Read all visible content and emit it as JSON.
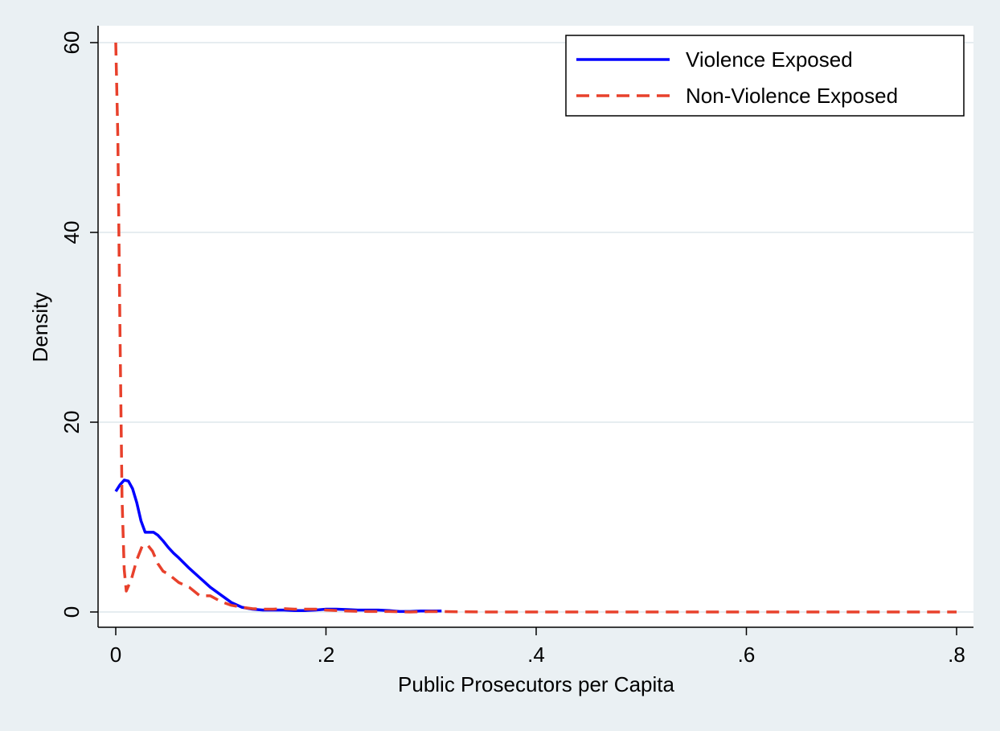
{
  "chart_data": {
    "type": "line",
    "title": "",
    "xlabel": "Public Prosecutors per Capita",
    "ylabel": "Density",
    "xlim": [
      0,
      0.8
    ],
    "ylim": [
      0,
      60
    ],
    "x_ticks": [
      {
        "value": 0,
        "label": "0"
      },
      {
        "value": 0.2,
        "label": ".2"
      },
      {
        "value": 0.4,
        "label": ".4"
      },
      {
        "value": 0.6,
        "label": ".6"
      },
      {
        "value": 0.8,
        "label": ".8"
      }
    ],
    "y_ticks": [
      {
        "value": 0,
        "label": "0"
      },
      {
        "value": 20,
        "label": "20"
      },
      {
        "value": 40,
        "label": "40"
      },
      {
        "value": 60,
        "label": "60"
      }
    ],
    "grid": "horizontal",
    "legend_position": "top-right",
    "series": [
      {
        "name": "Violence Exposed",
        "color": "#0000ff",
        "dash": "solid",
        "x": [
          0,
          0.004,
          0.008,
          0.012,
          0.016,
          0.02,
          0.024,
          0.028,
          0.032,
          0.036,
          0.04,
          0.045,
          0.05,
          0.055,
          0.06,
          0.07,
          0.08,
          0.09,
          0.1,
          0.11,
          0.12,
          0.13,
          0.14,
          0.15,
          0.16,
          0.17,
          0.18,
          0.19,
          0.2,
          0.21,
          0.22,
          0.23,
          0.24,
          0.25,
          0.26,
          0.27,
          0.28,
          0.29,
          0.3,
          0.31
        ],
        "values": [
          12.7,
          13.4,
          13.9,
          13.8,
          13.0,
          11.5,
          9.6,
          8.4,
          8.4,
          8.4,
          8.1,
          7.5,
          6.8,
          6.2,
          5.7,
          4.6,
          3.6,
          2.6,
          1.8,
          1.0,
          0.5,
          0.3,
          0.2,
          0.2,
          0.2,
          0.15,
          0.15,
          0.2,
          0.3,
          0.3,
          0.25,
          0.2,
          0.2,
          0.2,
          0.15,
          0.05,
          0.05,
          0.1,
          0.1,
          0.1
        ]
      },
      {
        "name": "Non-Violence Exposed",
        "color": "#e8412c",
        "dash": "dashed",
        "x": [
          0,
          0.002,
          0.004,
          0.006,
          0.008,
          0.01,
          0.015,
          0.02,
          0.025,
          0.03,
          0.035,
          0.04,
          0.045,
          0.05,
          0.06,
          0.07,
          0.08,
          0.09,
          0.1,
          0.11,
          0.12,
          0.13,
          0.14,
          0.15,
          0.16,
          0.17,
          0.18,
          0.19,
          0.2,
          0.22,
          0.24,
          0.26,
          0.28,
          0.3,
          0.35,
          0.4,
          0.5,
          0.6,
          0.65,
          0.7,
          0.75,
          0.8
        ],
        "values": [
          60,
          50,
          30,
          12,
          4.5,
          2.2,
          3.5,
          5.5,
          6.9,
          7.1,
          6.4,
          5.1,
          4.3,
          4.0,
          3.1,
          2.6,
          1.7,
          1.7,
          1.1,
          0.7,
          0.5,
          0.35,
          0.3,
          0.3,
          0.35,
          0.3,
          0.3,
          0.3,
          0.2,
          0.1,
          0.05,
          0.05,
          0,
          0.05,
          0,
          0,
          0,
          0,
          0,
          0,
          0,
          0
        ]
      }
    ]
  }
}
